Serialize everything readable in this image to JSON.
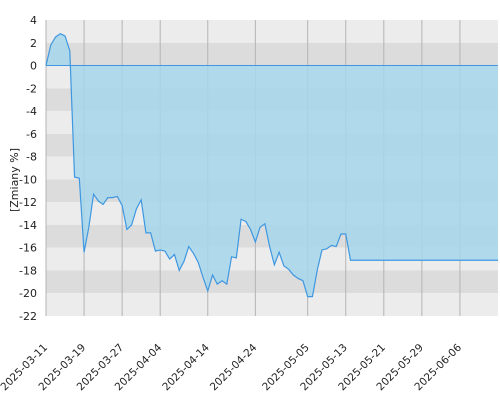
{
  "chart_data": {
    "type": "area",
    "ylabel": "[Zmiany %]",
    "xlabel": "",
    "title": "",
    "ylim": [
      -22,
      4
    ],
    "yticks": [
      4,
      2,
      0,
      -2,
      -4,
      -6,
      -8,
      -10,
      -12,
      -14,
      -16,
      -18,
      -20,
      -22
    ],
    "x_start": "2025-03-11",
    "x_end": "2025-06-14",
    "xticks": [
      "2025-03-11",
      "2025-03-19",
      "2025-03-27",
      "2025-04-04",
      "2025-04-14",
      "2025-04-24",
      "2025-05-05",
      "2025-05-13",
      "2025-05-21",
      "2025-05-29",
      "2025-06-06"
    ],
    "grid": "horizontal alternating bands with vertical lines at x ticks",
    "colors": {
      "band_light": "#ececec",
      "band_dark": "#dcdcdc",
      "fill": "#a6d7ec",
      "line": "#3e97e0",
      "vline": "#b4b4b4",
      "zero_line": "#3e97e0"
    },
    "series": [
      {
        "x": [
          "2025-03-11",
          "2025-03-12",
          "2025-03-13",
          "2025-03-14",
          "2025-03-15",
          "2025-03-16",
          "2025-03-17",
          "2025-03-18",
          "2025-03-19",
          "2025-03-20",
          "2025-03-21",
          "2025-03-22",
          "2025-03-23",
          "2025-03-24",
          "2025-03-25",
          "2025-03-26",
          "2025-03-27",
          "2025-03-28",
          "2025-03-29",
          "2025-03-30",
          "2025-03-31",
          "2025-04-01",
          "2025-04-02",
          "2025-04-03",
          "2025-04-04",
          "2025-04-05",
          "2025-04-06",
          "2025-04-07",
          "2025-04-08",
          "2025-04-09",
          "2025-04-10",
          "2025-04-11",
          "2025-04-12",
          "2025-04-13",
          "2025-04-14",
          "2025-04-15",
          "2025-04-16",
          "2025-04-17",
          "2025-04-18",
          "2025-04-19",
          "2025-04-20",
          "2025-04-21",
          "2025-04-22",
          "2025-04-23",
          "2025-04-24",
          "2025-04-25",
          "2025-04-26",
          "2025-04-27",
          "2025-04-28",
          "2025-04-29",
          "2025-04-30",
          "2025-05-01",
          "2025-05-02",
          "2025-05-03",
          "2025-05-04",
          "2025-05-05",
          "2025-05-06",
          "2025-05-07",
          "2025-05-08",
          "2025-05-09",
          "2025-05-10",
          "2025-05-11",
          "2025-05-12",
          "2025-05-13",
          "2025-05-14",
          "2025-05-15",
          "2025-05-16",
          "2025-05-17",
          "2025-05-18",
          "2025-05-19",
          "2025-05-20",
          "2025-05-21",
          "2025-05-22",
          "2025-05-23",
          "2025-05-24",
          "2025-05-25",
          "2025-05-26",
          "2025-05-27",
          "2025-05-28",
          "2025-05-29",
          "2025-05-30",
          "2025-05-31",
          "2025-06-01",
          "2025-06-02",
          "2025-06-03",
          "2025-06-04",
          "2025-06-05",
          "2025-06-06",
          "2025-06-07",
          "2025-06-08",
          "2025-06-09",
          "2025-06-10",
          "2025-06-11",
          "2025-06-12",
          "2025-06-13",
          "2025-06-14"
        ],
        "values": [
          0.0,
          1.8,
          2.5,
          2.8,
          2.6,
          1.3,
          -9.8,
          -9.9,
          -16.4,
          -14.2,
          -11.3,
          -11.9,
          -12.2,
          -11.6,
          -11.6,
          -11.5,
          -12.3,
          -14.4,
          -14.0,
          -12.6,
          -11.8,
          -14.7,
          -14.7,
          -16.3,
          -16.2,
          -16.3,
          -17.0,
          -16.6,
          -18.0,
          -17.2,
          -15.9,
          -16.5,
          -17.3,
          -18.6,
          -19.8,
          -18.4,
          -19.2,
          -18.9,
          -19.2,
          -16.8,
          -16.9,
          -13.5,
          -13.7,
          -14.4,
          -15.5,
          -14.2,
          -13.9,
          -15.9,
          -17.5,
          -16.4,
          -17.6,
          -17.9,
          -18.4,
          -18.7,
          -18.9,
          -20.3,
          -20.3,
          -18.0,
          -16.2,
          -16.1,
          -15.8,
          -15.9,
          -14.8,
          -14.8,
          -17.1,
          -17.1,
          -17.1,
          -17.1,
          -17.1,
          -17.1,
          -17.1,
          -17.1,
          -17.1,
          -17.1,
          -17.1,
          -17.1,
          -17.1,
          -17.1,
          -17.1,
          -17.1,
          -17.1,
          -17.1,
          -17.1,
          -17.1,
          -17.1,
          -17.1,
          -17.1,
          -17.1,
          -17.1,
          -17.1,
          -17.1,
          -17.1,
          -17.1,
          -17.1,
          -17.1,
          -17.1
        ]
      }
    ]
  }
}
